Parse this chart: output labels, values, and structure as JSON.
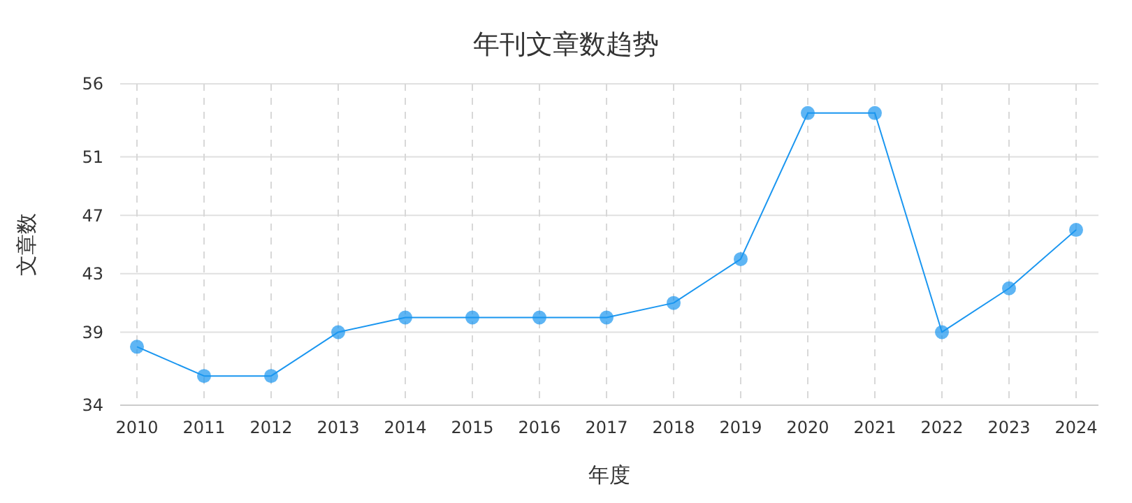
{
  "chart_data": {
    "type": "line",
    "title": "年刊文章数趋势",
    "xlabel": "年度",
    "ylabel": "文章数",
    "categories": [
      "2010",
      "2011",
      "2012",
      "2013",
      "2014",
      "2015",
      "2016",
      "2017",
      "2018",
      "2019",
      "2020",
      "2021",
      "2022",
      "2023",
      "2024"
    ],
    "series": [
      {
        "color": "#1a96f0",
        "values": [
          38,
          36,
          36,
          39,
          40,
          40,
          40,
          40,
          41,
          44,
          54,
          54,
          39,
          42,
          46
        ]
      }
    ],
    "ylim": [
      34,
      56
    ],
    "yticks": [
      34,
      39,
      43,
      47,
      51,
      56
    ],
    "grid": true,
    "marker": "circle",
    "line_style": "solid"
  }
}
